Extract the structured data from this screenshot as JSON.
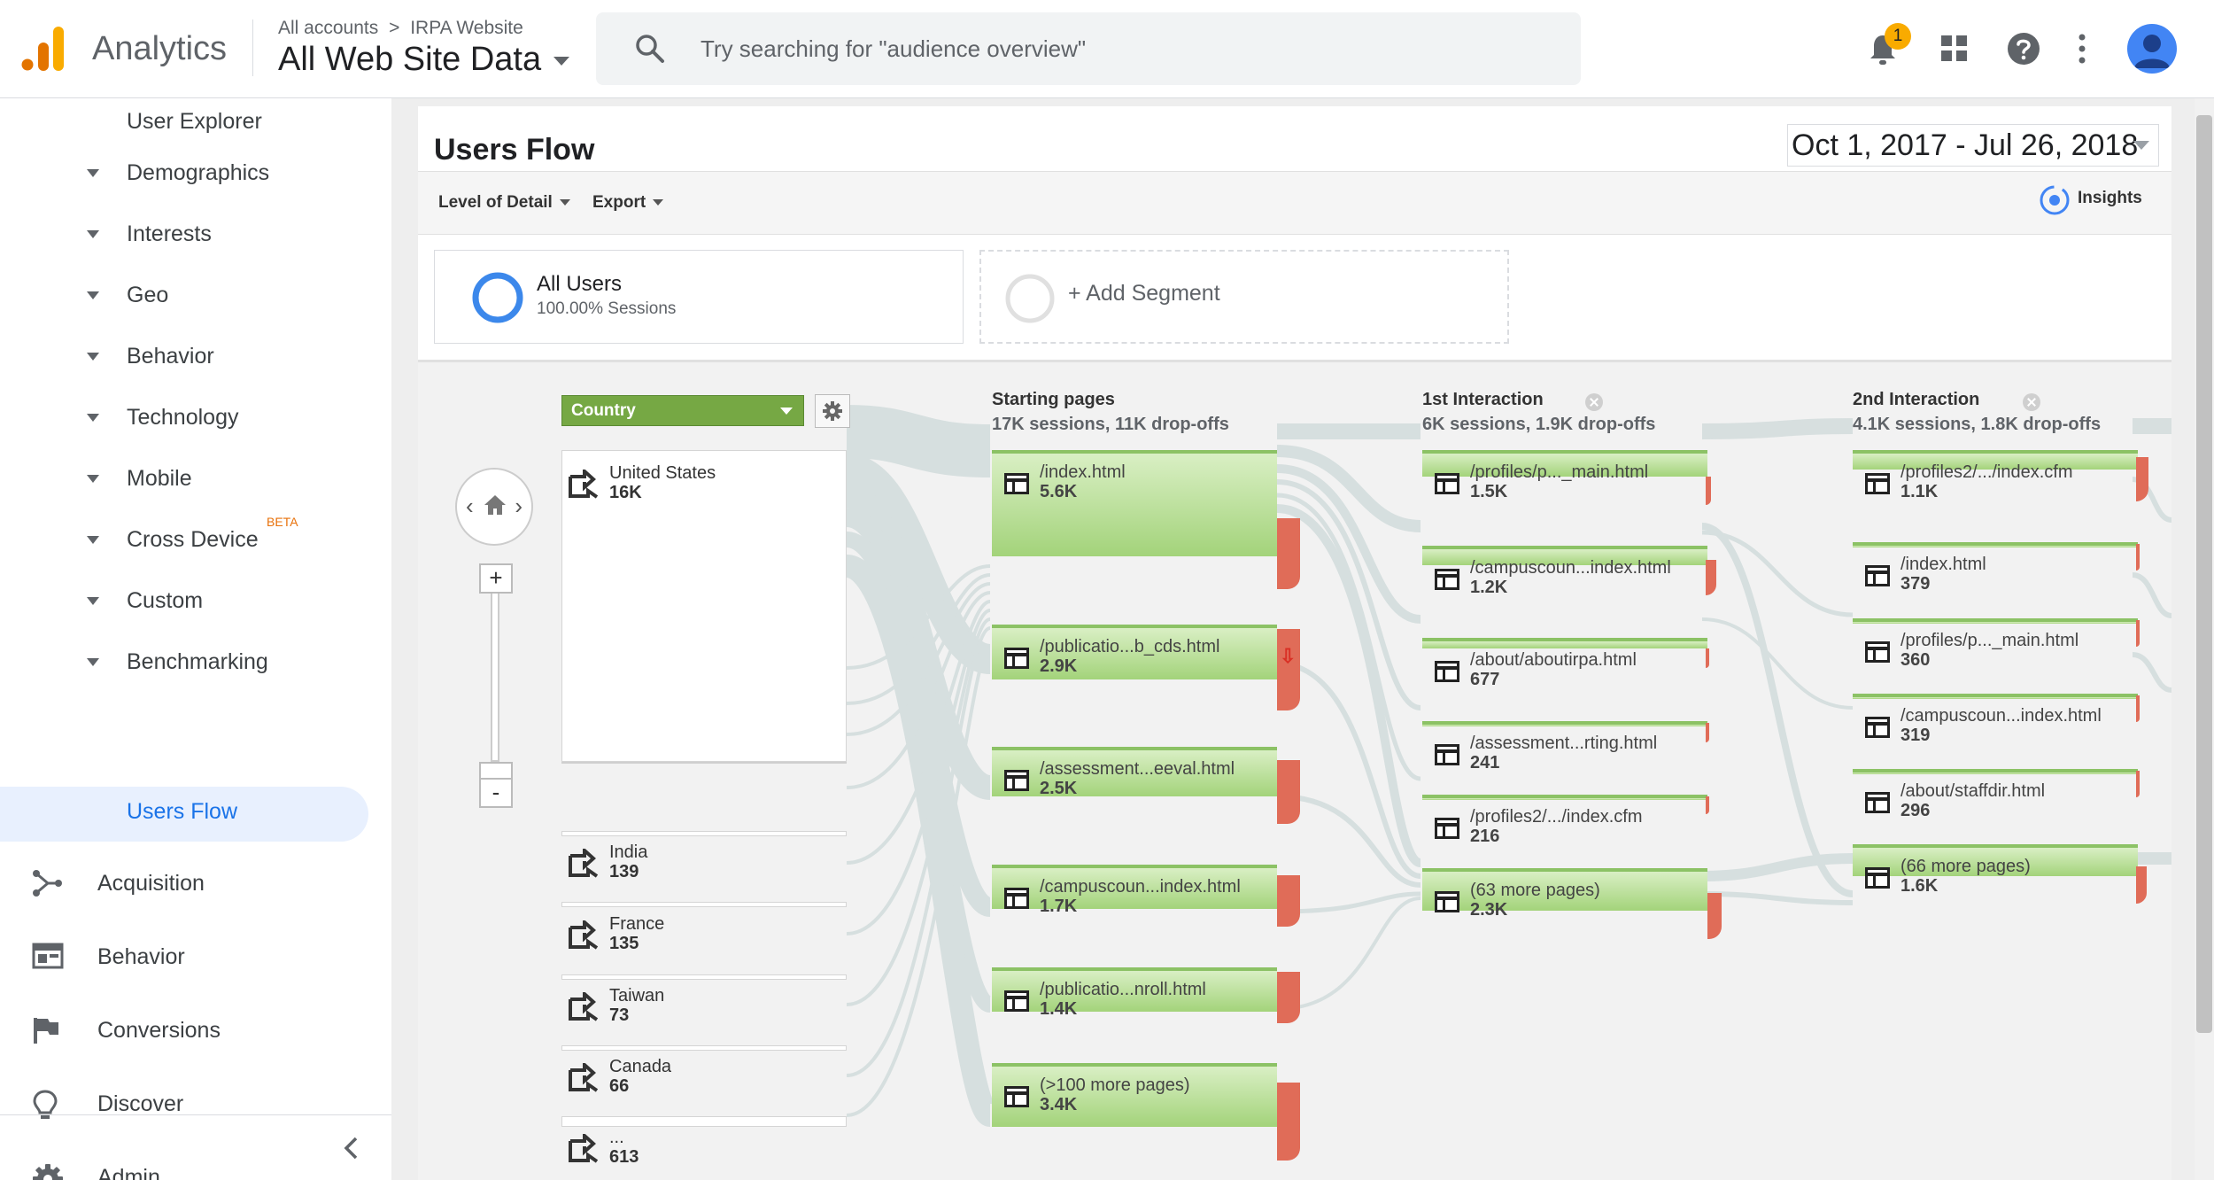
{
  "header": {
    "product": "Analytics",
    "breadcrumb_account": "All accounts",
    "breadcrumb_sep": ">",
    "breadcrumb_property": "IRPA Website",
    "view": "All Web Site Data",
    "search_placeholder": "Try searching for \"audience overview\"",
    "notification_count": "1",
    "colors": {
      "logo_orange": "#f9ab00",
      "logo_dark": "#e37400",
      "accent": "#1a73e8"
    }
  },
  "sidebar": {
    "user_explorer": "User Explorer",
    "audience_items": [
      "Demographics",
      "Interests",
      "Geo",
      "Behavior",
      "Technology",
      "Mobile",
      "Cross Device",
      "Custom",
      "Benchmarking"
    ],
    "beta_tag": "BETA",
    "active_item": "Users Flow",
    "main_items": [
      {
        "label": "Acquisition",
        "icon": "acquisition-icon"
      },
      {
        "label": "Behavior",
        "icon": "behavior-icon"
      },
      {
        "label": "Conversions",
        "icon": "flag-icon"
      },
      {
        "label": "Discover",
        "icon": "lightbulb-icon"
      },
      {
        "label": "Admin",
        "icon": "gear-icon"
      }
    ]
  },
  "report": {
    "title": "Users Flow",
    "date_range": "Oct 1, 2017 - Jul 26, 2018",
    "level_of_detail": "Level of Detail",
    "export": "Export",
    "insights": "Insights",
    "segment": {
      "name": "All Users",
      "sub": "100.00% Sessions"
    },
    "add_segment": "+ Add Segment"
  },
  "flow": {
    "dimension": "Country",
    "countries": [
      {
        "name": "United States",
        "value": "16K"
      },
      {
        "name": "India",
        "value": "139"
      },
      {
        "name": "France",
        "value": "135"
      },
      {
        "name": "Taiwan",
        "value": "73"
      },
      {
        "name": "Canada",
        "value": "66"
      },
      {
        "name": "...",
        "value": "613"
      }
    ],
    "columns": [
      {
        "title": "Starting pages",
        "sub": "17K sessions, 11K drop-offs",
        "pages": [
          {
            "name": "/index.html",
            "value": "5.6K"
          },
          {
            "name": "/publicatio...b_cds.html",
            "value": "2.9K"
          },
          {
            "name": "/assessment...eeval.html",
            "value": "2.5K"
          },
          {
            "name": "/campuscoun...index.html",
            "value": "1.7K"
          },
          {
            "name": "/publicatio...nroll.html",
            "value": "1.4K"
          },
          {
            "name": "(>100 more pages)",
            "value": "3.4K"
          }
        ]
      },
      {
        "title": "1st Interaction",
        "sub": "6K sessions, 1.9K drop-offs",
        "pages": [
          {
            "name": "/profiles/p..._main.html",
            "value": "1.5K"
          },
          {
            "name": "/campuscoun...index.html",
            "value": "1.2K"
          },
          {
            "name": "/about/aboutirpa.html",
            "value": "677"
          },
          {
            "name": "/assessment...rting.html",
            "value": "241"
          },
          {
            "name": "/profiles2/.../index.cfm",
            "value": "216"
          },
          {
            "name": "(63 more pages)",
            "value": "2.3K"
          }
        ]
      },
      {
        "title": "2nd Interaction",
        "sub": "4.1K sessions, 1.8K drop-offs",
        "pages": [
          {
            "name": "/profiles2/.../index.cfm",
            "value": "1.1K"
          },
          {
            "name": "/index.html",
            "value": "379"
          },
          {
            "name": "/profiles/p..._main.html",
            "value": "360"
          },
          {
            "name": "/campuscoun...index.html",
            "value": "319"
          },
          {
            "name": "/about/staffdir.html",
            "value": "296"
          },
          {
            "name": "(66 more pages)",
            "value": "1.6K"
          }
        ]
      }
    ]
  }
}
